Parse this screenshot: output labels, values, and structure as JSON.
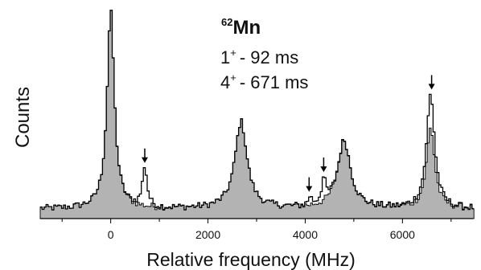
{
  "chart_data": {
    "type": "histogram",
    "xlabel": "Relative frequency (MHz)",
    "ylabel": "Counts",
    "xlim": [
      -1450,
      7450
    ],
    "ylim": [
      0,
      100
    ],
    "xticks": [
      0,
      2000,
      4000,
      6000
    ],
    "xtick_labels": [
      "0",
      "2000",
      "4000",
      "6000"
    ],
    "grid": false,
    "fill_color": "#b3b3b3",
    "line_color": "#000000",
    "annotation": {
      "isotope_mass": "62",
      "isotope_symbol": "Mn",
      "states": [
        {
          "spin": "1",
          "parity": "+",
          "lifetime": "- 92 ms"
        },
        {
          "spin": "4",
          "parity": "+",
          "lifetime": "- 671 ms"
        }
      ]
    },
    "arrows_at_x": [
      700,
      4080,
      4380,
      6600
    ],
    "series": [
      {
        "style": "filled",
        "peaks": [
          {
            "x": 0,
            "height": 93,
            "width": 90
          },
          {
            "x": 2680,
            "height": 41,
            "width": 150
          },
          {
            "x": 4800,
            "height": 32,
            "width": 160
          },
          {
            "x": 6580,
            "height": 38,
            "width": 100
          }
        ],
        "baseline": 4.5
      },
      {
        "style": "outline",
        "peaks": [
          {
            "x": 0,
            "height": 93,
            "width": 90
          },
          {
            "x": 700,
            "height": 19,
            "width": 55
          },
          {
            "x": 2680,
            "height": 41,
            "width": 150
          },
          {
            "x": 4100,
            "height": 4,
            "width": 40
          },
          {
            "x": 4380,
            "height": 11,
            "width": 50
          },
          {
            "x": 4800,
            "height": 32,
            "width": 160
          },
          {
            "x": 6580,
            "height": 54,
            "width": 100
          }
        ],
        "baseline": 4.5
      }
    ]
  }
}
